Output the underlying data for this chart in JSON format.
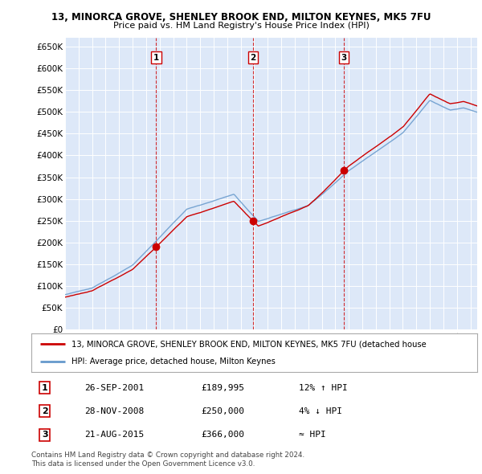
{
  "title_line1": "13, MINORCA GROVE, SHENLEY BROOK END, MILTON KEYNES, MK5 7FU",
  "title_line2": "Price paid vs. HM Land Registry's House Price Index (HPI)",
  "ylabel_ticks": [
    "£0",
    "£50K",
    "£100K",
    "£150K",
    "£200K",
    "£250K",
    "£300K",
    "£350K",
    "£400K",
    "£450K",
    "£500K",
    "£550K",
    "£600K",
    "£650K"
  ],
  "ytick_values": [
    0,
    50000,
    100000,
    150000,
    200000,
    250000,
    300000,
    350000,
    400000,
    450000,
    500000,
    550000,
    600000,
    650000
  ],
  "ylim": [
    0,
    670000
  ],
  "xlim_start": 1995.0,
  "xlim_end": 2025.5,
  "chart_bg": "#dde8f8",
  "grid_color": "#ffffff",
  "sale_color": "#cc0000",
  "hpi_color": "#6699cc",
  "vline_color": "#cc0000",
  "purchases": [
    {
      "label": "1",
      "date_num": 2001.74,
      "price": 189995
    },
    {
      "label": "2",
      "date_num": 2008.91,
      "price": 250000
    },
    {
      "label": "3",
      "date_num": 2015.64,
      "price": 366000
    }
  ],
  "legend_sale_label": "13, MINORCA GROVE, SHENLEY BROOK END, MILTON KEYNES, MK5 7FU (detached house",
  "legend_hpi_label": "HPI: Average price, detached house, Milton Keynes",
  "table_rows": [
    {
      "num": "1",
      "date": "26-SEP-2001",
      "price": "£189,995",
      "hpi": "12% ↑ HPI"
    },
    {
      "num": "2",
      "date": "28-NOV-2008",
      "price": "£250,000",
      "hpi": "4% ↓ HPI"
    },
    {
      "num": "3",
      "date": "21-AUG-2015",
      "price": "£366,000",
      "hpi": "≈ HPI"
    }
  ],
  "footer": "Contains HM Land Registry data © Crown copyright and database right 2024.\nThis data is licensed under the Open Government Licence v3.0."
}
